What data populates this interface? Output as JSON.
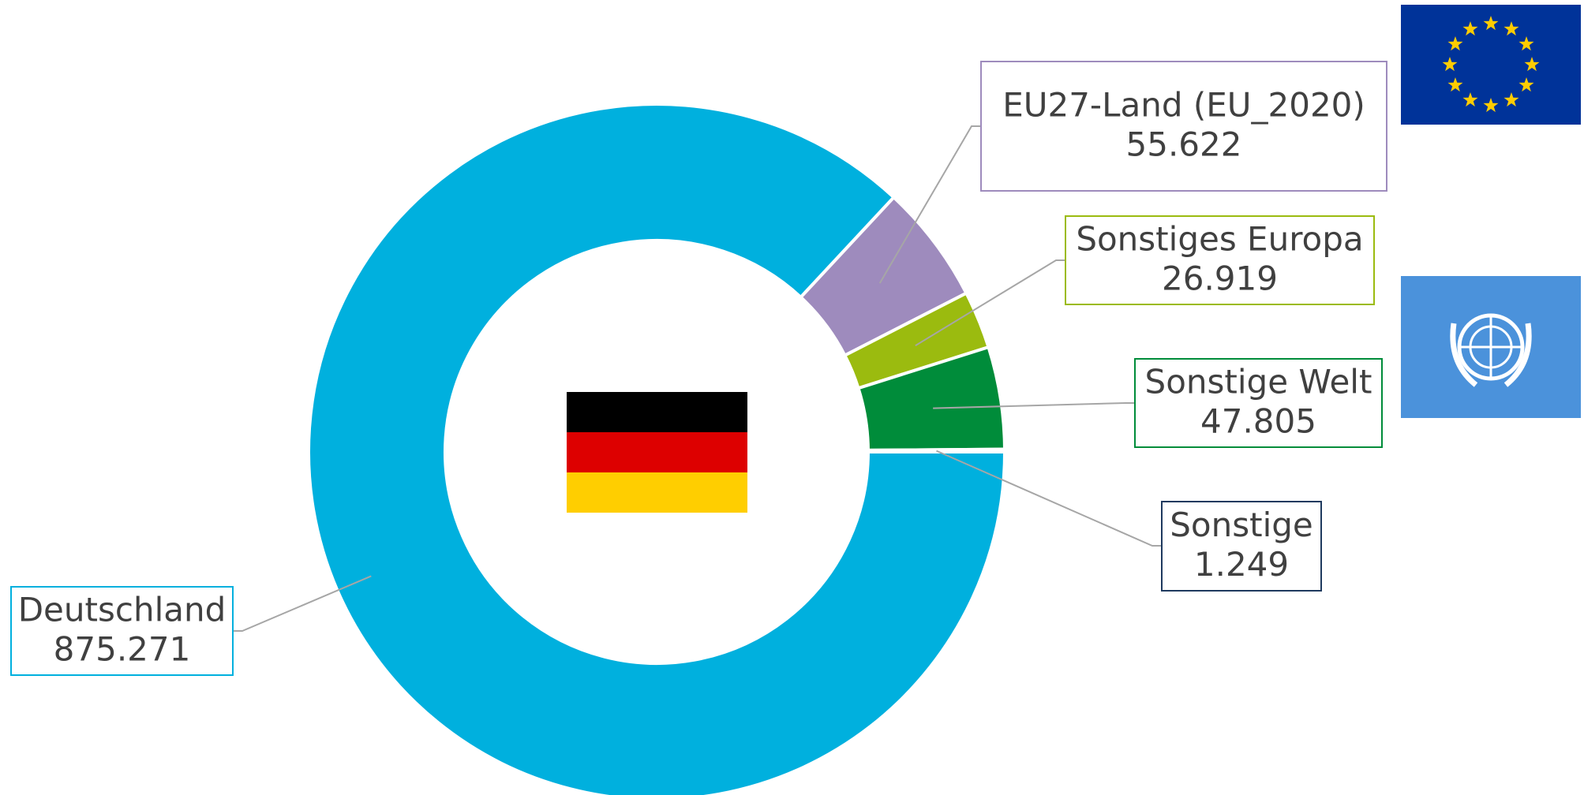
{
  "chart_data": {
    "type": "pie",
    "donut": true,
    "categories": [
      "Deutschland",
      "EU27-Land (EU_2020)",
      "Sonstiges Europa",
      "Sonstige Welt",
      "Sonstige"
    ],
    "values": [
      875271,
      55622,
      26919,
      47805,
      1249
    ],
    "value_labels": [
      "875.271",
      "55.622",
      "26.919",
      "47.805",
      "1.249"
    ],
    "colors": [
      "#00b0de",
      "#9e8bbd",
      "#9bbb0f",
      "#008c3a",
      "#1f3a5f"
    ]
  }
}
